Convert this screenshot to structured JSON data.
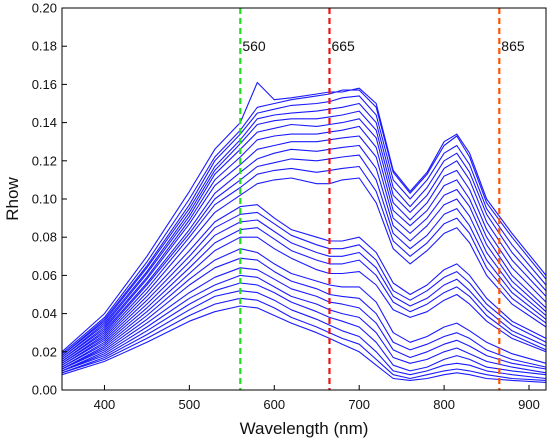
{
  "chart_data": {
    "type": "line",
    "title": "",
    "xlabel": "Wavelength (nm)",
    "ylabel": "Rhow",
    "xlim": [
      350,
      920
    ],
    "ylim": [
      0,
      0.2
    ],
    "xticks": [
      400,
      500,
      600,
      700,
      800,
      900
    ],
    "yticks": [
      "0.00",
      "0.02",
      "0.04",
      "0.06",
      "0.08",
      "0.10",
      "0.12",
      "0.14",
      "0.16",
      "0.18",
      "0.20"
    ],
    "grid": false,
    "line_color": "#1a1aff",
    "wavelengths": [
      350,
      400,
      450,
      500,
      530,
      560,
      580,
      600,
      620,
      650,
      665,
      680,
      700,
      720,
      740,
      760,
      780,
      800,
      815,
      830,
      850,
      880,
      920
    ],
    "series_values": [
      [
        0.02,
        0.04,
        0.07,
        0.104,
        0.126,
        0.14,
        0.161,
        0.152,
        0.153,
        0.155,
        0.156,
        0.156,
        0.158,
        0.15,
        0.115,
        0.104,
        0.114,
        0.13,
        0.134,
        0.124,
        0.1,
        0.082,
        0.06
      ],
      [
        0.019,
        0.038,
        0.067,
        0.1,
        0.122,
        0.136,
        0.148,
        0.15,
        0.152,
        0.154,
        0.155,
        0.157,
        0.157,
        0.148,
        0.114,
        0.103,
        0.113,
        0.128,
        0.133,
        0.122,
        0.098,
        0.08,
        0.058
      ],
      [
        0.018,
        0.037,
        0.065,
        0.097,
        0.12,
        0.134,
        0.145,
        0.147,
        0.149,
        0.15,
        0.151,
        0.153,
        0.154,
        0.144,
        0.11,
        0.1,
        0.11,
        0.124,
        0.128,
        0.118,
        0.095,
        0.076,
        0.055
      ],
      [
        0.018,
        0.036,
        0.064,
        0.095,
        0.117,
        0.131,
        0.142,
        0.144,
        0.145,
        0.146,
        0.147,
        0.148,
        0.15,
        0.14,
        0.106,
        0.096,
        0.106,
        0.12,
        0.124,
        0.114,
        0.092,
        0.072,
        0.052
      ],
      [
        0.017,
        0.035,
        0.062,
        0.093,
        0.115,
        0.129,
        0.139,
        0.141,
        0.142,
        0.142,
        0.143,
        0.144,
        0.146,
        0.136,
        0.102,
        0.093,
        0.102,
        0.116,
        0.12,
        0.11,
        0.088,
        0.068,
        0.049
      ],
      [
        0.017,
        0.034,
        0.061,
        0.091,
        0.113,
        0.126,
        0.135,
        0.137,
        0.139,
        0.138,
        0.139,
        0.14,
        0.142,
        0.132,
        0.098,
        0.089,
        0.098,
        0.112,
        0.115,
        0.105,
        0.084,
        0.064,
        0.046
      ],
      [
        0.016,
        0.033,
        0.059,
        0.089,
        0.11,
        0.122,
        0.131,
        0.133,
        0.134,
        0.134,
        0.135,
        0.136,
        0.138,
        0.127,
        0.094,
        0.086,
        0.094,
        0.107,
        0.11,
        0.1,
        0.08,
        0.06,
        0.043
      ],
      [
        0.016,
        0.032,
        0.058,
        0.087,
        0.107,
        0.118,
        0.126,
        0.128,
        0.13,
        0.13,
        0.131,
        0.132,
        0.133,
        0.122,
        0.09,
        0.082,
        0.09,
        0.102,
        0.105,
        0.096,
        0.076,
        0.057,
        0.041
      ],
      [
        0.015,
        0.031,
        0.056,
        0.084,
        0.103,
        0.114,
        0.121,
        0.124,
        0.126,
        0.125,
        0.126,
        0.127,
        0.128,
        0.116,
        0.086,
        0.078,
        0.086,
        0.097,
        0.1,
        0.091,
        0.072,
        0.054,
        0.039
      ],
      [
        0.015,
        0.03,
        0.055,
        0.082,
        0.1,
        0.11,
        0.117,
        0.119,
        0.121,
        0.12,
        0.121,
        0.122,
        0.123,
        0.11,
        0.082,
        0.074,
        0.081,
        0.092,
        0.095,
        0.086,
        0.068,
        0.051,
        0.037
      ],
      [
        0.014,
        0.029,
        0.053,
        0.08,
        0.097,
        0.106,
        0.113,
        0.115,
        0.116,
        0.114,
        0.115,
        0.116,
        0.117,
        0.104,
        0.078,
        0.07,
        0.077,
        0.087,
        0.09,
        0.082,
        0.064,
        0.048,
        0.035
      ],
      [
        0.014,
        0.028,
        0.051,
        0.077,
        0.093,
        0.102,
        0.108,
        0.11,
        0.111,
        0.108,
        0.108,
        0.11,
        0.111,
        0.098,
        0.074,
        0.066,
        0.073,
        0.082,
        0.085,
        0.077,
        0.06,
        0.045,
        0.033
      ],
      [
        0.013,
        0.027,
        0.049,
        0.073,
        0.088,
        0.096,
        0.097,
        0.09,
        0.084,
        0.08,
        0.078,
        0.078,
        0.08,
        0.072,
        0.056,
        0.05,
        0.055,
        0.063,
        0.066,
        0.06,
        0.048,
        0.036,
        0.027
      ],
      [
        0.013,
        0.026,
        0.047,
        0.07,
        0.085,
        0.092,
        0.093,
        0.087,
        0.081,
        0.076,
        0.074,
        0.074,
        0.076,
        0.068,
        0.052,
        0.047,
        0.052,
        0.059,
        0.062,
        0.056,
        0.045,
        0.034,
        0.025
      ],
      [
        0.012,
        0.025,
        0.045,
        0.067,
        0.081,
        0.088,
        0.089,
        0.083,
        0.077,
        0.072,
        0.07,
        0.07,
        0.072,
        0.064,
        0.049,
        0.044,
        0.048,
        0.055,
        0.058,
        0.052,
        0.042,
        0.031,
        0.023
      ],
      [
        0.012,
        0.024,
        0.043,
        0.064,
        0.077,
        0.084,
        0.085,
        0.079,
        0.073,
        0.068,
        0.066,
        0.066,
        0.068,
        0.06,
        0.046,
        0.041,
        0.045,
        0.051,
        0.054,
        0.049,
        0.039,
        0.029,
        0.021
      ],
      [
        0.011,
        0.023,
        0.041,
        0.061,
        0.073,
        0.08,
        0.08,
        0.074,
        0.069,
        0.063,
        0.061,
        0.061,
        0.062,
        0.055,
        0.042,
        0.038,
        0.041,
        0.047,
        0.05,
        0.045,
        0.036,
        0.027,
        0.02
      ],
      [
        0.011,
        0.022,
        0.039,
        0.058,
        0.068,
        0.074,
        0.072,
        0.066,
        0.061,
        0.057,
        0.055,
        0.054,
        0.054,
        0.046,
        0.03,
        0.025,
        0.028,
        0.033,
        0.035,
        0.031,
        0.025,
        0.019,
        0.014
      ],
      [
        0.011,
        0.021,
        0.037,
        0.055,
        0.064,
        0.069,
        0.068,
        0.062,
        0.057,
        0.053,
        0.05,
        0.049,
        0.048,
        0.04,
        0.025,
        0.021,
        0.024,
        0.028,
        0.03,
        0.027,
        0.021,
        0.016,
        0.012
      ],
      [
        0.01,
        0.02,
        0.035,
        0.051,
        0.059,
        0.064,
        0.063,
        0.058,
        0.053,
        0.049,
        0.046,
        0.045,
        0.043,
        0.035,
        0.021,
        0.017,
        0.02,
        0.024,
        0.026,
        0.023,
        0.018,
        0.014,
        0.011
      ],
      [
        0.01,
        0.019,
        0.033,
        0.048,
        0.055,
        0.06,
        0.059,
        0.054,
        0.049,
        0.045,
        0.042,
        0.04,
        0.038,
        0.03,
        0.017,
        0.014,
        0.016,
        0.02,
        0.022,
        0.019,
        0.015,
        0.012,
        0.009
      ],
      [
        0.01,
        0.018,
        0.031,
        0.045,
        0.052,
        0.056,
        0.055,
        0.051,
        0.046,
        0.041,
        0.038,
        0.036,
        0.033,
        0.025,
        0.013,
        0.01,
        0.012,
        0.016,
        0.018,
        0.016,
        0.012,
        0.01,
        0.008
      ],
      [
        0.009,
        0.017,
        0.029,
        0.042,
        0.049,
        0.052,
        0.051,
        0.047,
        0.042,
        0.037,
        0.034,
        0.031,
        0.028,
        0.02,
        0.01,
        0.008,
        0.01,
        0.013,
        0.014,
        0.013,
        0.01,
        0.008,
        0.006
      ],
      [
        0.009,
        0.016,
        0.027,
        0.039,
        0.045,
        0.048,
        0.047,
        0.043,
        0.038,
        0.033,
        0.03,
        0.027,
        0.024,
        0.016,
        0.008,
        0.006,
        0.008,
        0.01,
        0.011,
        0.01,
        0.008,
        0.006,
        0.005
      ],
      [
        0.008,
        0.015,
        0.025,
        0.036,
        0.041,
        0.044,
        0.043,
        0.039,
        0.035,
        0.03,
        0.027,
        0.024,
        0.02,
        0.013,
        0.006,
        0.005,
        0.006,
        0.008,
        0.009,
        0.008,
        0.006,
        0.005,
        0.004
      ]
    ],
    "vertical_lines": [
      {
        "x": 560,
        "label": "560",
        "color": "#22dd22"
      },
      {
        "x": 665,
        "label": "665",
        "color": "#ee1111"
      },
      {
        "x": 865,
        "label": "865",
        "color": "#ff5500"
      }
    ]
  }
}
